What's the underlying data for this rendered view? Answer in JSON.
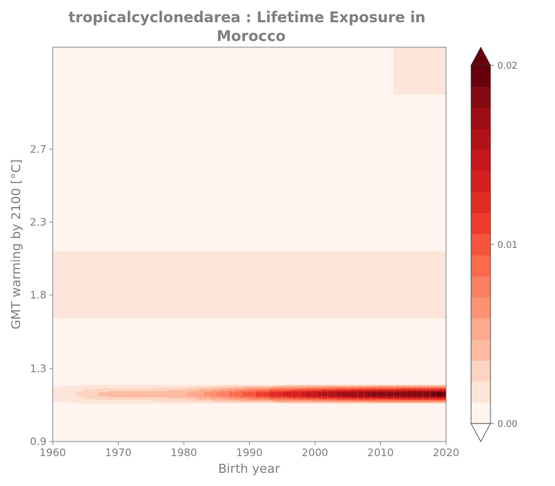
{
  "chart_data": {
    "type": "heatmap",
    "title_line1": "tropicalcyclonedarea : Lifetime Exposure in",
    "title_line2": "Morocco",
    "xlabel": "Birth year",
    "ylabel": "GMT warming by 2100 [°C]",
    "xlim": [
      1960,
      2020
    ],
    "ylim": [
      0.9,
      3.6
    ],
    "x_ticks": [
      "1960",
      "1970",
      "1980",
      "1990",
      "2000",
      "2010",
      "2020"
    ],
    "y_ticks": [
      "0.9",
      "1.3",
      "1.8",
      "2.3",
      "2.7"
    ],
    "y_tick_values": [
      0.9,
      1.3,
      1.8,
      2.3,
      2.7
    ],
    "colorbar": {
      "min": 0.0,
      "max": 0.02,
      "levels": 17,
      "extend": "both",
      "tick_values": [
        0.0,
        0.01,
        0.02
      ],
      "tick_labels": [
        "0.00",
        "0.01",
        "0.02"
      ],
      "colormap": "Reds",
      "colors": [
        "#fff5f0",
        "#fee5d9",
        "#fdd4c2",
        "#fcbba1",
        "#fca98d",
        "#fc9272",
        "#fb7f63",
        "#fb6a4a",
        "#f5553c",
        "#ef3b2c",
        "#e12d26",
        "#d42020",
        "#c5171c",
        "#b11218",
        "#9d0d14",
        "#850a12",
        "#67000d"
      ],
      "under_color": "#ffffff",
      "over_color": "#67000d"
    },
    "bands": [
      {
        "y0": 0.9,
        "y1": 3.6,
        "x0": 1960,
        "x1": 2020,
        "value": 0.001
      },
      {
        "y0": 1.64,
        "y1": 2.1,
        "x0": 1960,
        "x1": 2020,
        "value": 0.0015
      },
      {
        "y0": 2.72,
        "y1": 2.78,
        "x0": 2010,
        "x1": 2020,
        "value": 0.0003
      },
      {
        "y0": 3.0,
        "y1": 3.18,
        "x0": 2011,
        "x1": 2013.5,
        "value": 0.0003
      },
      {
        "y0": 3.0,
        "y1": 3.3,
        "x0": 2012,
        "x1": 2020,
        "value": 0.0015
      },
      {
        "y0": 3.56,
        "y1": 3.6,
        "x0": 2008,
        "x1": 2020,
        "value": 0.0015
      }
    ],
    "hot_row": {
      "y_center": 1.16,
      "x": [
        1960,
        1963,
        1965,
        1968,
        1970,
        1975,
        1980,
        1985,
        1990,
        1995,
        2000,
        2005,
        2010,
        2015,
        2020
      ],
      "peak_values": [
        0.0015,
        0.002,
        0.003,
        0.0038,
        0.004,
        0.004,
        0.0045,
        0.007,
        0.01,
        0.013,
        0.015,
        0.017,
        0.018,
        0.0185,
        0.019
      ]
    }
  }
}
